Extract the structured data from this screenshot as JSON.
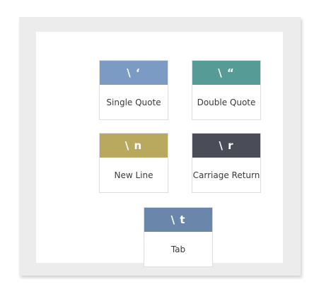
{
  "cards": [
    {
      "code": "\\ ‘",
      "label": "Single Quote",
      "color": "#7c9bc4"
    },
    {
      "code": "\\ “",
      "label": "Double Quote",
      "color": "#579b97"
    },
    {
      "code": "\\ n",
      "label": "New Line",
      "color": "#b9a95e"
    },
    {
      "code": "\\ r",
      "label": "Carriage Return",
      "color": "#4a4c58"
    },
    {
      "code": "\\ t",
      "label": "Tab",
      "color": "#6a86aa"
    }
  ]
}
